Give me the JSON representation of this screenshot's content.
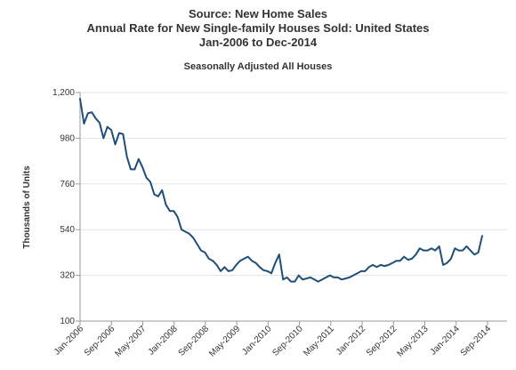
{
  "header": {
    "source": "Source: New Home Sales",
    "title": "Annual Rate for New Single-family Houses Sold: United States",
    "date_range": "Jan-2006 to Dec-2014",
    "subtitle": "Seasonally Adjusted All Houses"
  },
  "colors": {
    "line": "#1f4e79",
    "grid": "#e4e4e4",
    "axis": "#999999",
    "text": "#333333"
  },
  "chart_data": {
    "type": "line",
    "title": "Annual Rate for New Single-family Houses Sold: United States",
    "subtitle": "Seasonally Adjusted All Houses",
    "xlabel": "",
    "ylabel": "Thousands of Units",
    "ylim": [
      100,
      1200
    ],
    "yticks": [
      "1,200",
      "980",
      "760",
      "540",
      "320",
      "100"
    ],
    "xticks": [
      "Jan-2006",
      "Sep-2006",
      "May-2007",
      "Jan-2008",
      "Sep-2008",
      "May-2009",
      "Jan-2010",
      "Sep-2010",
      "May-2011",
      "Jan-2012",
      "Sep-2012",
      "May-2013",
      "Jan-2014",
      "Sep-2014"
    ],
    "grid": true,
    "legend": "none",
    "x_start": "Jan-2006",
    "x_end": "Dec-2014",
    "series": [
      {
        "values": [
          1170,
          1050,
          1100,
          1105,
          1075,
          1055,
          980,
          1035,
          1020,
          950,
          1005,
          1000,
          890,
          830,
          830,
          880,
          840,
          790,
          770,
          710,
          700,
          730,
          660,
          630,
          630,
          600,
          540,
          530,
          520,
          500,
          470,
          440,
          430,
          400,
          390,
          370,
          340,
          360,
          340,
          345,
          370,
          390,
          400,
          410,
          390,
          380,
          360,
          345,
          340,
          330,
          380,
          420,
          300,
          310,
          290,
          290,
          320,
          300,
          305,
          310,
          300,
          290,
          300,
          310,
          320,
          310,
          310,
          300,
          305,
          310,
          320,
          330,
          340,
          340,
          360,
          370,
          360,
          370,
          365,
          370,
          380,
          390,
          390,
          410,
          395,
          400,
          420,
          450,
          440,
          440,
          450,
          440,
          460,
          370,
          380,
          400,
          450,
          440,
          440,
          460,
          440,
          420,
          430,
          510
        ]
      }
    ]
  }
}
